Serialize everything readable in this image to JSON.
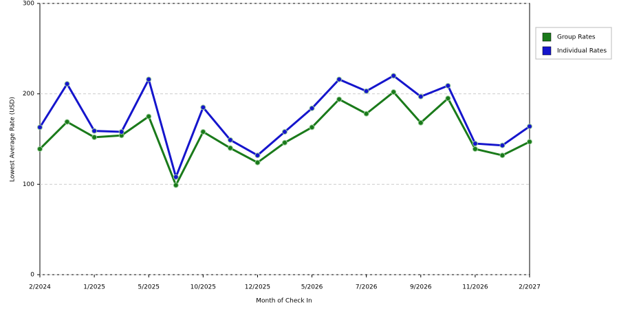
{
  "chart_data": {
    "type": "line",
    "x_label": "Month of Check In",
    "y_label": "Lowest Average Rate (USD)",
    "categories": [
      "2/2024",
      null,
      "1/2025",
      null,
      "5/2025",
      null,
      "10/2025",
      null,
      "12/2025",
      null,
      "5/2026",
      null,
      "7/2026",
      null,
      "9/2026",
      null,
      "11/2026",
      null,
      "2/2027"
    ],
    "series": [
      {
        "name": "Group Rates",
        "color": "#1a7a1a",
        "values": [
          139,
          169,
          152,
          154,
          175,
          99,
          158,
          140,
          124,
          146,
          163,
          194,
          178,
          202,
          168,
          195,
          139,
          132,
          147
        ]
      },
      {
        "name": "Individual Rates",
        "color": "#1515cc",
        "values": [
          163,
          211,
          159,
          158,
          216,
          108,
          185,
          149,
          132,
          158,
          184,
          216,
          203,
          220,
          197,
          209,
          145,
          143,
          164
        ]
      }
    ],
    "ylim": [
      0,
      300
    ],
    "yticks": [
      0,
      100,
      200,
      300
    ],
    "grid": true,
    "legend": "right"
  }
}
